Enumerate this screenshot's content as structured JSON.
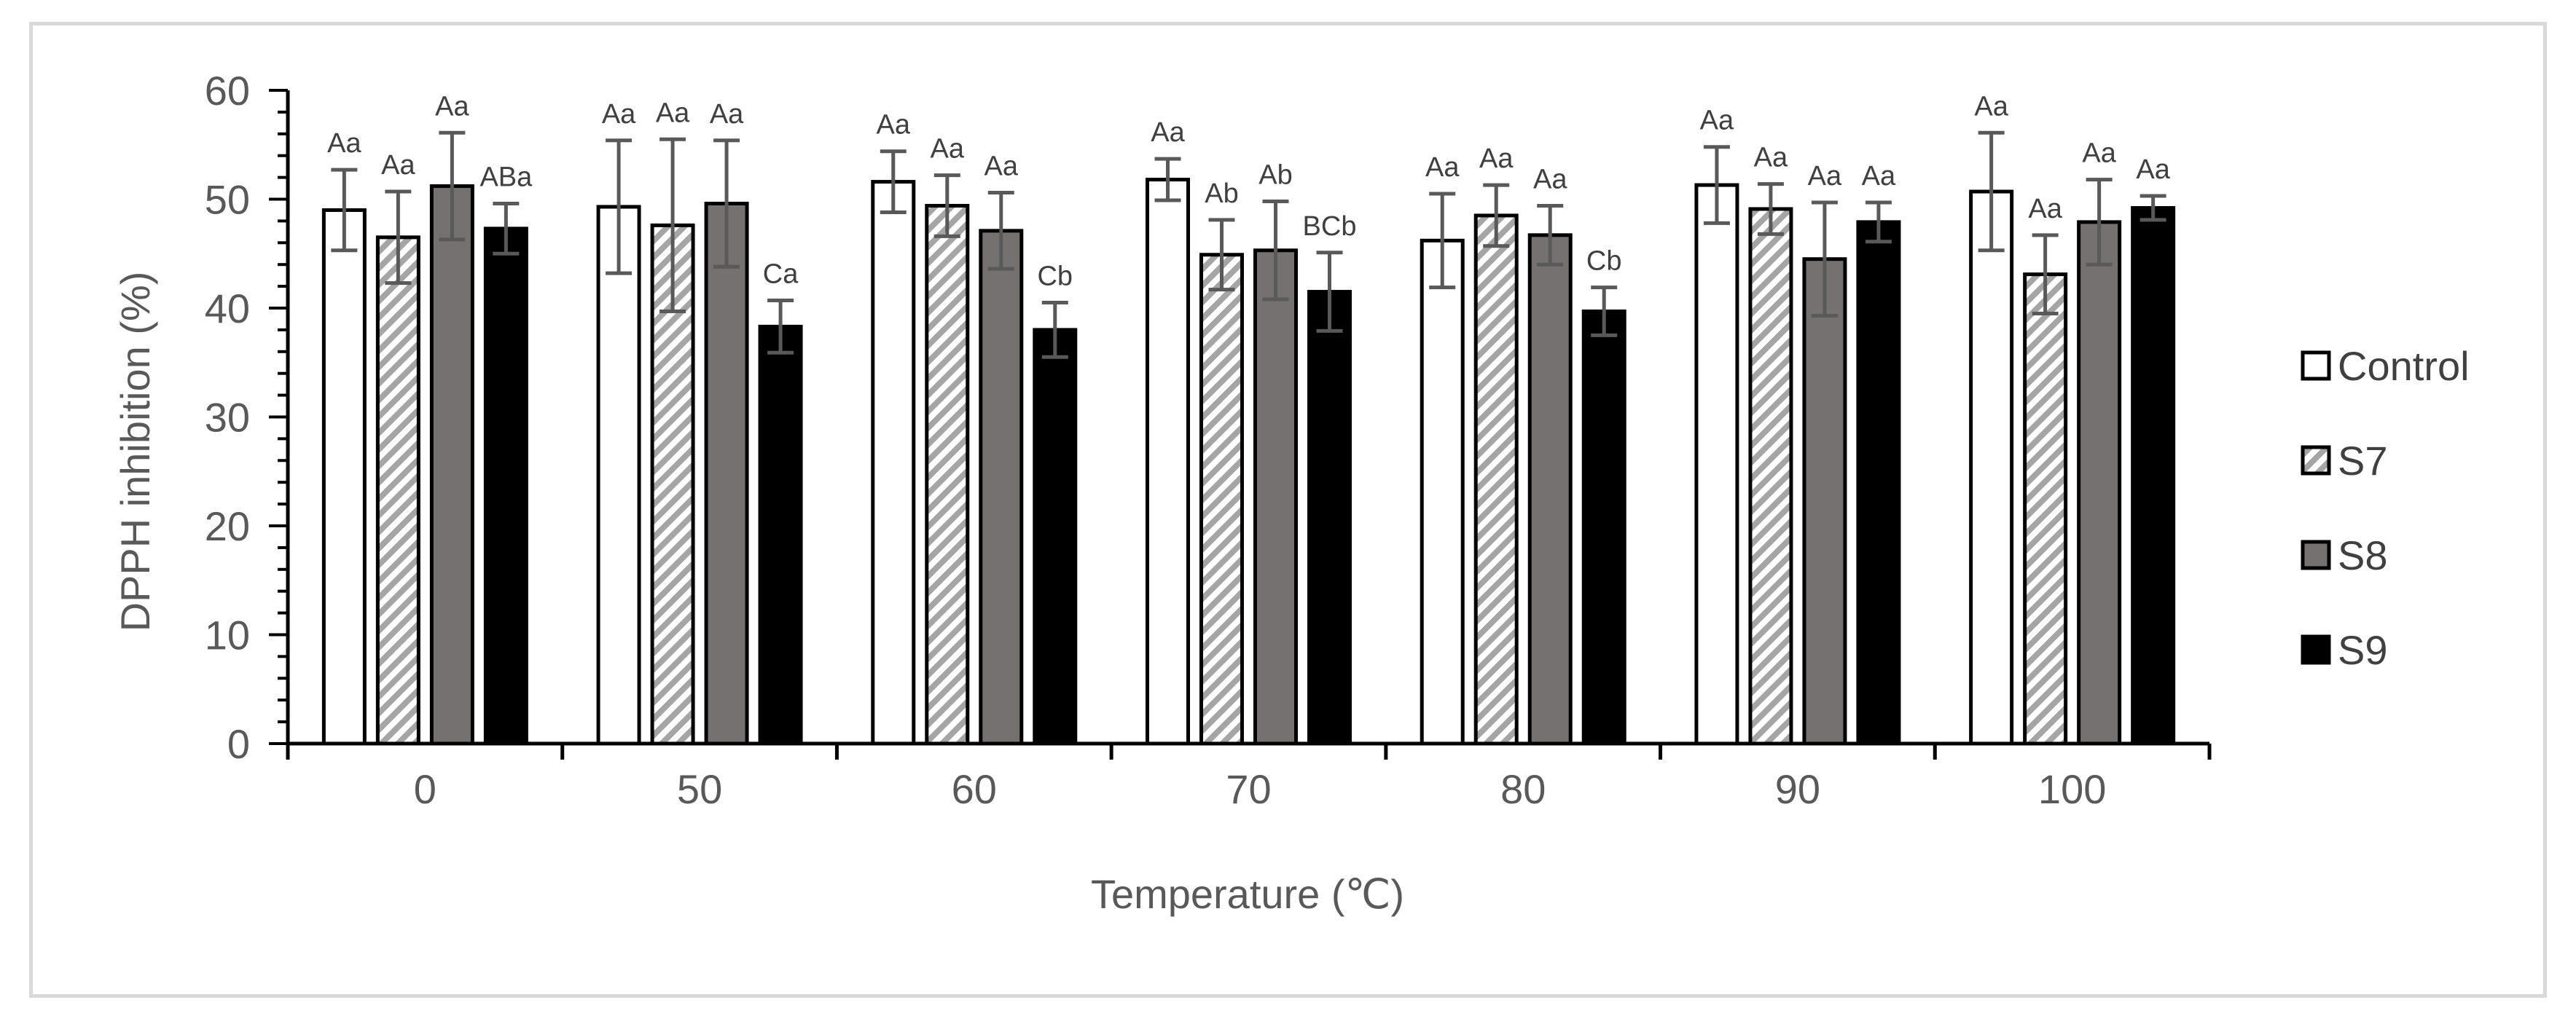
{
  "chart_data": {
    "type": "bar",
    "title": "",
    "xlabel": "Temperature (℃)",
    "ylabel": "DPPH inhibition (%)",
    "ylim": [
      0,
      60
    ],
    "yticks": [
      0,
      10,
      20,
      30,
      40,
      50,
      60
    ],
    "grid": false,
    "legend_position": "right",
    "categories": [
      "0",
      "50",
      "60",
      "70",
      "80",
      "90",
      "100"
    ],
    "series": [
      {
        "name": "Control",
        "pattern": "white",
        "values": [
          49.0,
          49.3,
          51.6,
          51.8,
          46.2,
          51.3,
          50.7
        ],
        "errors": [
          3.7,
          6.1,
          2.8,
          1.9,
          4.3,
          3.5,
          5.4
        ],
        "labels": [
          "Aa",
          "Aa",
          "Aa",
          "Aa",
          "Aa",
          "Aa",
          "Aa"
        ]
      },
      {
        "name": "S7",
        "pattern": "hatched",
        "values": [
          46.5,
          47.6,
          49.4,
          44.9,
          48.5,
          49.1,
          43.1
        ],
        "errors": [
          4.2,
          7.9,
          2.8,
          3.2,
          2.8,
          2.3,
          3.6
        ],
        "labels": [
          "Aa",
          "Aa",
          "Aa",
          "Ab",
          "Aa",
          "Aa",
          "Aa"
        ]
      },
      {
        "name": "S8",
        "pattern": "gray",
        "values": [
          51.2,
          49.6,
          47.1,
          45.3,
          46.7,
          44.5,
          47.9
        ],
        "errors": [
          4.9,
          5.8,
          3.5,
          4.5,
          2.7,
          5.2,
          3.9
        ],
        "labels": [
          "Aa",
          "Aa",
          "Aa",
          "Ab",
          "Aa",
          "Aa",
          "Aa"
        ]
      },
      {
        "name": "S9",
        "pattern": "black",
        "values": [
          47.3,
          38.3,
          38.0,
          41.5,
          39.7,
          47.9,
          49.2
        ],
        "errors": [
          2.3,
          2.4,
          2.5,
          3.6,
          2.2,
          1.8,
          1.1
        ],
        "labels": [
          "ABa",
          "Ca",
          "Cb",
          "BCb",
          "Cb",
          "Aa",
          "Aa"
        ]
      }
    ]
  },
  "colors": {
    "axis": "#000000",
    "text": "#595959",
    "error_bar": "#595959",
    "gray_fill": "#767171",
    "black_fill": "#000000",
    "hatch": "#a5a5a5",
    "frame": "#d9d9d9"
  }
}
